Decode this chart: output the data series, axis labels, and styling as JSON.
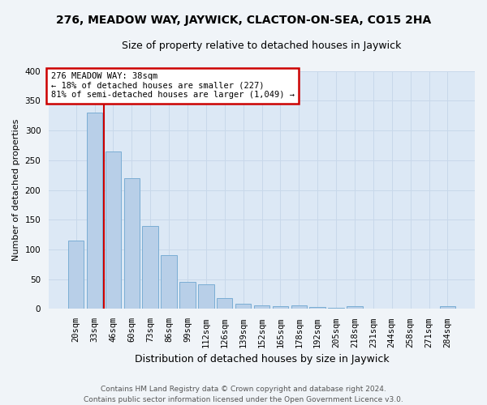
{
  "title": "276, MEADOW WAY, JAYWICK, CLACTON-ON-SEA, CO15 2HA",
  "subtitle": "Size of property relative to detached houses in Jaywick",
  "xlabel": "Distribution of detached houses by size in Jaywick",
  "ylabel": "Number of detached properties",
  "footer_line1": "Contains HM Land Registry data © Crown copyright and database right 2024.",
  "footer_line2": "Contains public sector information licensed under the Open Government Licence v3.0.",
  "categories": [
    "20sqm",
    "33sqm",
    "46sqm",
    "60sqm",
    "73sqm",
    "86sqm",
    "99sqm",
    "112sqm",
    "126sqm",
    "139sqm",
    "152sqm",
    "165sqm",
    "178sqm",
    "192sqm",
    "205sqm",
    "218sqm",
    "231sqm",
    "244sqm",
    "258sqm",
    "271sqm",
    "284sqm"
  ],
  "bar_heights": [
    115,
    330,
    265,
    220,
    140,
    90,
    45,
    41,
    18,
    9,
    6,
    5,
    6,
    3,
    2,
    5,
    1,
    1,
    1,
    1,
    5
  ],
  "bar_color": "#b8cfe8",
  "bar_edge_color": "#7aadd4",
  "bar_width": 0.85,
  "property_line_x": 1.5,
  "property_label": "276 MEADOW WAY: 38sqm",
  "annotation_line2": "← 18% of detached houses are smaller (227)",
  "annotation_line3": "81% of semi-detached houses are larger (1,049) →",
  "annotation_box_color": "#ffffff",
  "annotation_box_edgecolor": "#cc0000",
  "property_line_color": "#cc0000",
  "grid_color": "#c8d8ea",
  "background_color": "#dce8f5",
  "fig_background_color": "#f0f4f8",
  "ylim": [
    0,
    400
  ],
  "yticks": [
    0,
    50,
    100,
    150,
    200,
    250,
    300,
    350,
    400
  ],
  "title_fontsize": 10,
  "subtitle_fontsize": 9,
  "xlabel_fontsize": 9,
  "ylabel_fontsize": 8,
  "tick_fontsize": 7.5,
  "footer_fontsize": 6.5,
  "annotation_fontsize": 7.5
}
